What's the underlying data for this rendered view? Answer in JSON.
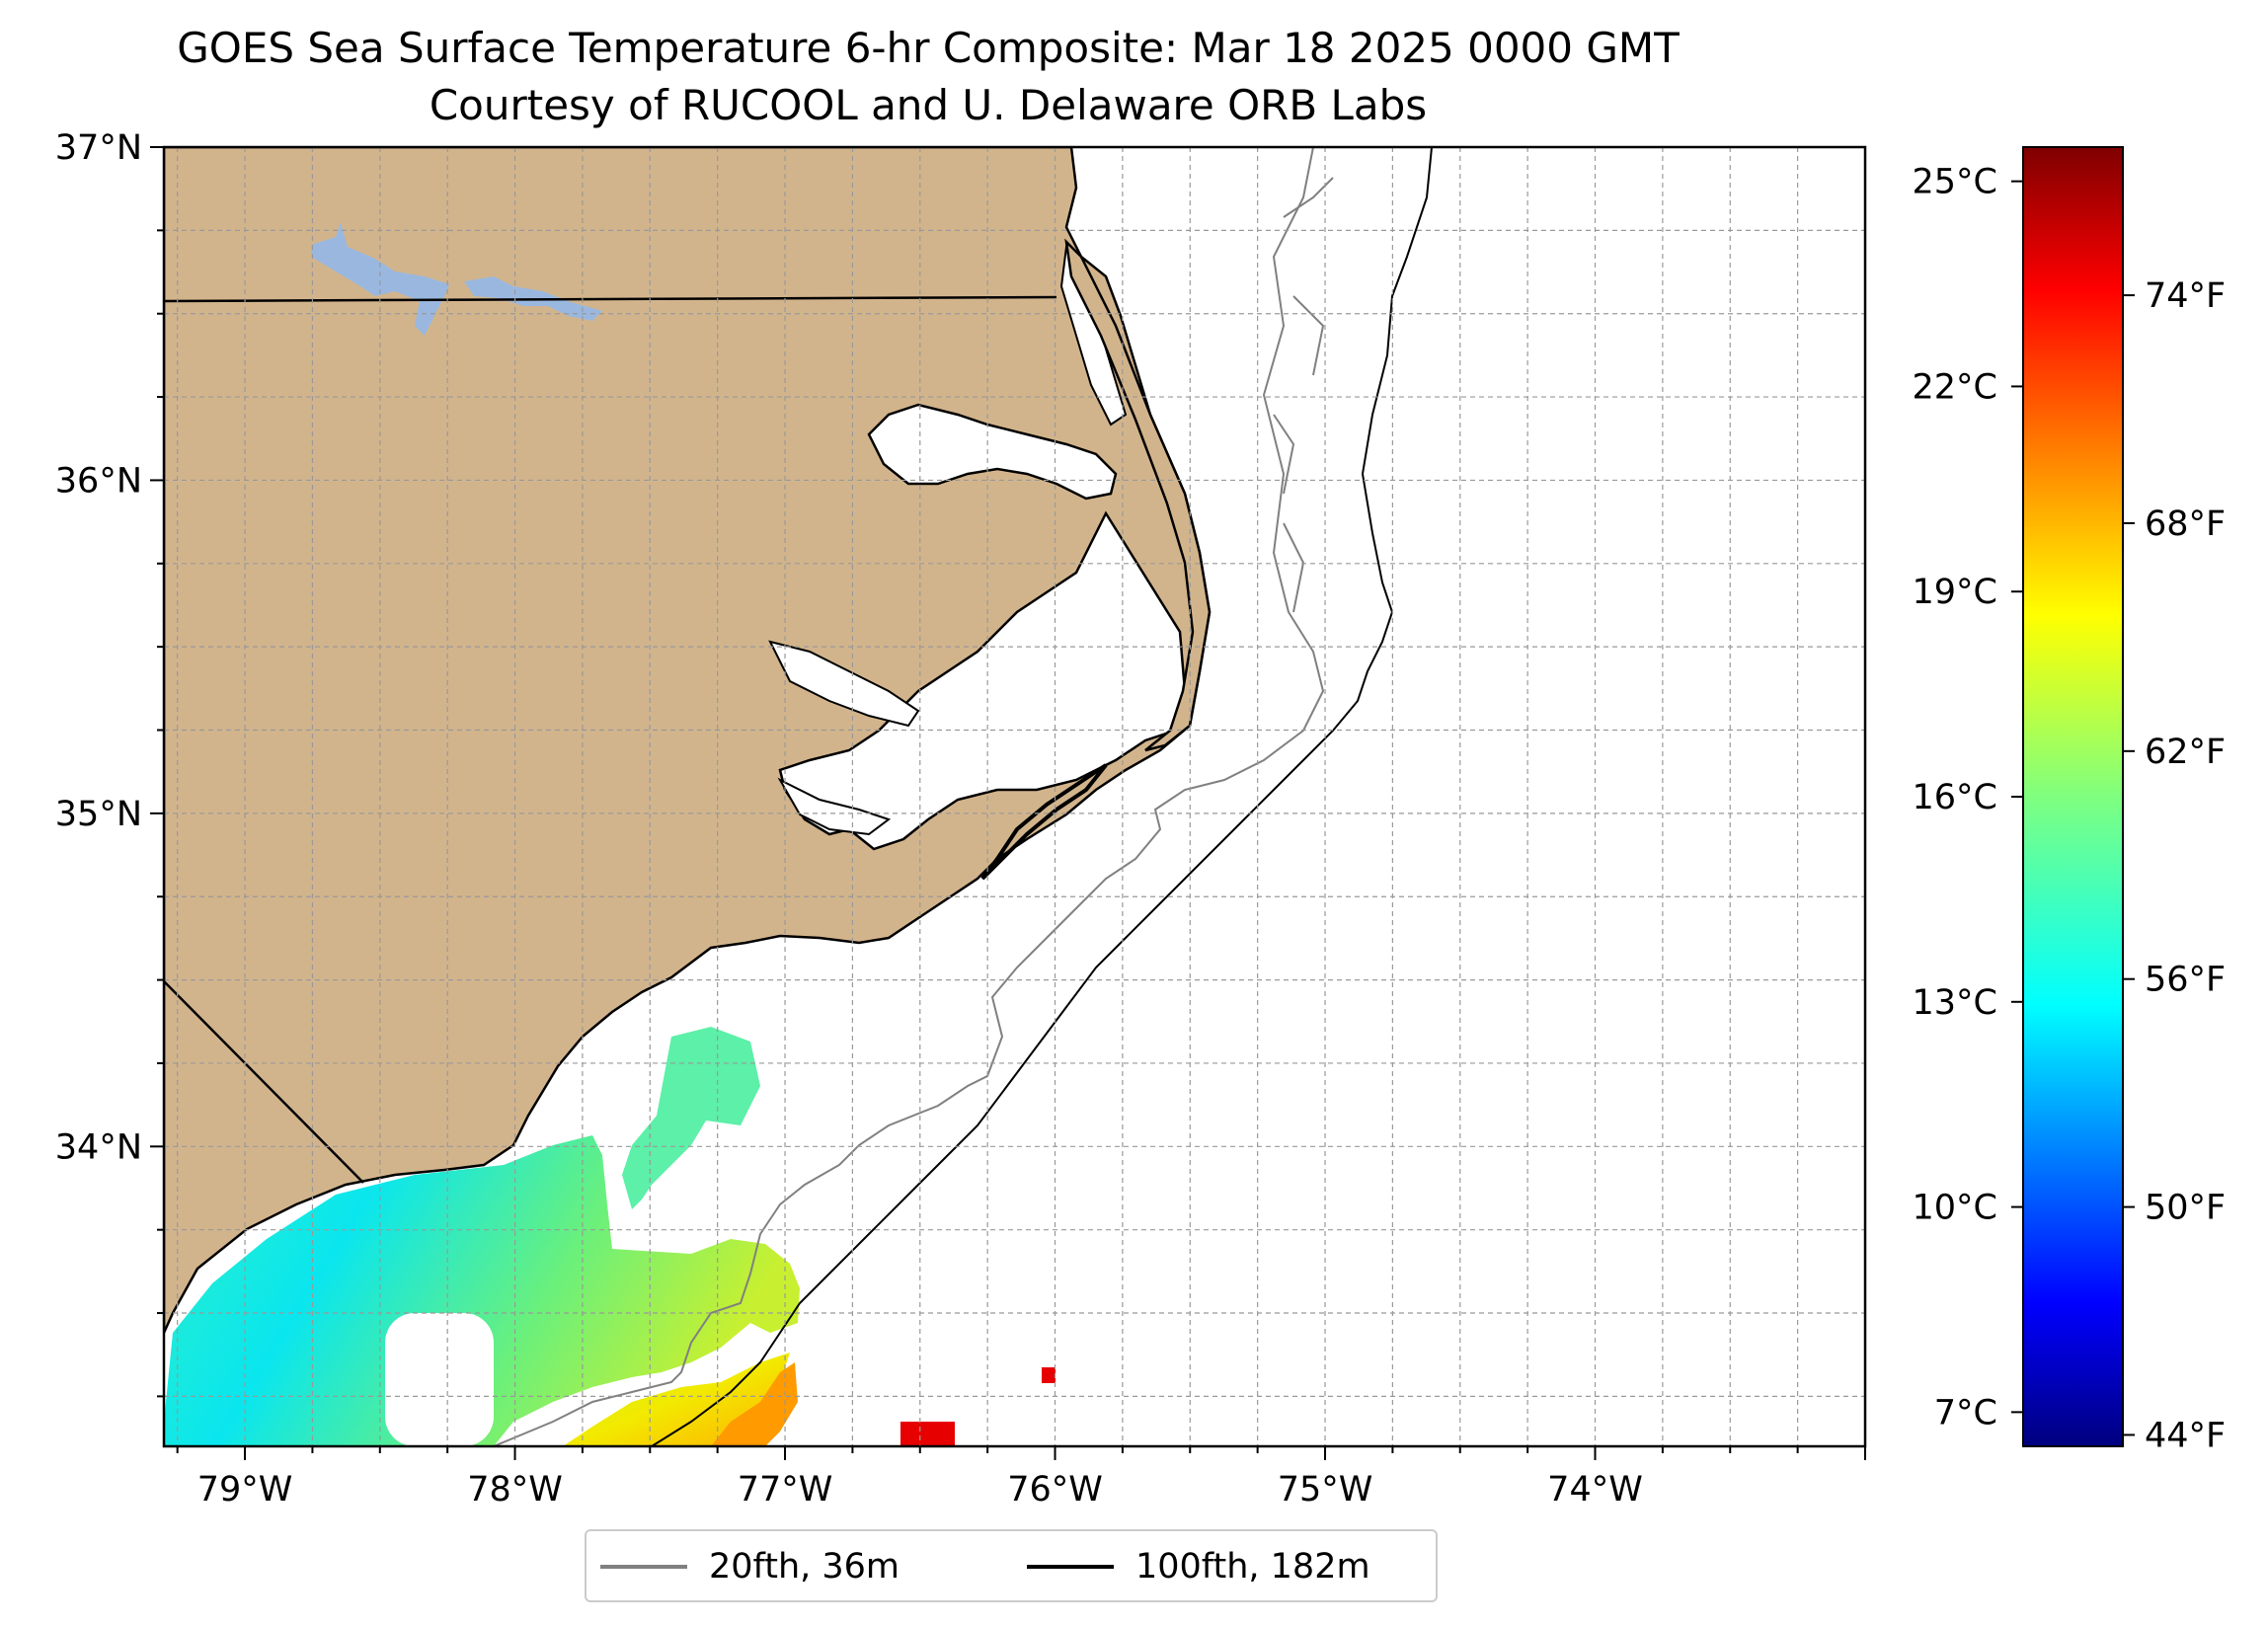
{
  "title": {
    "line1": "GOES Sea Surface Temperature 6-hr Composite: Mar 18 2025 0000 GMT",
    "line2": "Courtesy of RUCOOL and U. Delaware ORB Labs"
  },
  "map": {
    "lon_range": [
      -79.3,
      -73.0
    ],
    "lat_range": [
      33.1,
      37.0
    ],
    "lon_ticks": [
      {
        "value": -79,
        "label": "79°W"
      },
      {
        "value": -78,
        "label": "78°W"
      },
      {
        "value": -77,
        "label": "77°W"
      },
      {
        "value": -76,
        "label": "76°W"
      },
      {
        "value": -75,
        "label": "75°W"
      },
      {
        "value": -74,
        "label": "74°W"
      }
    ],
    "lat_ticks": [
      {
        "value": 34,
        "label": "34°N"
      },
      {
        "value": 35,
        "label": "35°N"
      },
      {
        "value": 36,
        "label": "36°N"
      },
      {
        "value": 37,
        "label": "37°N"
      }
    ],
    "grid": "dashed, every 0.25°",
    "colors": {
      "land": "#d2b48c",
      "water_body": "#9ab8df",
      "coastline": "#000000"
    }
  },
  "colorbar": {
    "colormap": "jet",
    "celsius_range": [
      6.5,
      25.5
    ],
    "celsius_ticks": [
      {
        "value": 7,
        "label": "7°C"
      },
      {
        "value": 10,
        "label": "10°C"
      },
      {
        "value": 13,
        "label": "13°C"
      },
      {
        "value": 16,
        "label": "16°C"
      },
      {
        "value": 19,
        "label": "19°C"
      },
      {
        "value": 22,
        "label": "22°C"
      },
      {
        "value": 25,
        "label": "25°C"
      }
    ],
    "fahrenheit_ticks": [
      {
        "value": 44,
        "label": "44°F"
      },
      {
        "value": 50,
        "label": "50°F"
      },
      {
        "value": 56,
        "label": "56°F"
      },
      {
        "value": 62,
        "label": "62°F"
      },
      {
        "value": 68,
        "label": "68°F"
      },
      {
        "value": 74,
        "label": "74°F"
      }
    ]
  },
  "legend": {
    "items": [
      {
        "label": "20fth, 36m",
        "color": "#808080"
      },
      {
        "label": "100fth, 182m",
        "color": "#000000"
      }
    ],
    "placement": "below the map, centered"
  }
}
